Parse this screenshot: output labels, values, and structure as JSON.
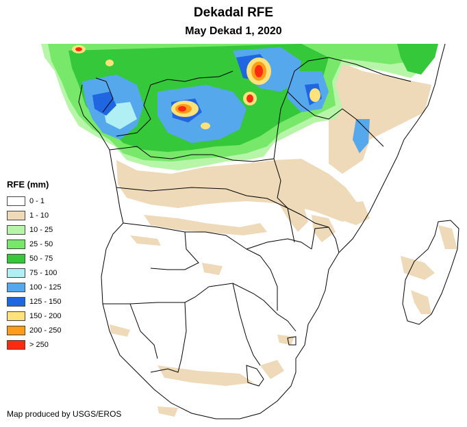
{
  "title": "Dekadal RFE",
  "subtitle": "May Dekad 1, 2020",
  "legend": {
    "title": "RFE (mm)",
    "items": [
      {
        "label": "0 - 1",
        "color": "#ffffff"
      },
      {
        "label": "1 - 10",
        "color": "#eed9b9"
      },
      {
        "label": "10 - 25",
        "color": "#b7f5a8"
      },
      {
        "label": "25 - 50",
        "color": "#78e86a"
      },
      {
        "label": "50 - 75",
        "color": "#35c83a"
      },
      {
        "label": "75 - 100",
        "color": "#b0f0f5"
      },
      {
        "label": "100 - 125",
        "color": "#55a8ec"
      },
      {
        "label": "125 - 150",
        "color": "#1f66e0"
      },
      {
        "label": "150 - 200",
        "color": "#ffe27a"
      },
      {
        "label": "200 - 250",
        "color": "#ff9d1a"
      },
      {
        "label": "> 250",
        "color": "#ff2a10"
      }
    ]
  },
  "credit": "Map produced by USGS/EROS"
}
